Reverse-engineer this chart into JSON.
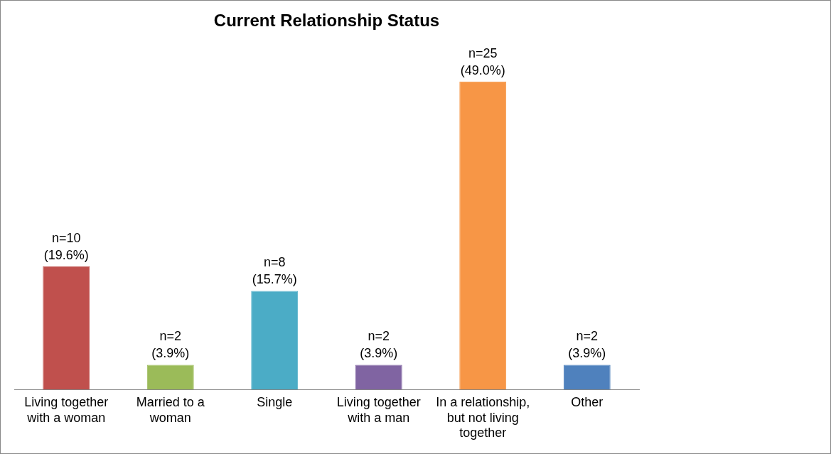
{
  "chart_data": {
    "type": "bar",
    "title": "Current Relationship Status",
    "categories": [
      "Living together with a woman",
      "Married to a woman",
      "Single",
      "Living together with a man",
      "In a relationship, but not living together",
      "Other"
    ],
    "values": [
      10,
      2,
      8,
      2,
      25,
      2
    ],
    "colors": [
      "#c0504d",
      "#9bbb59",
      "#4bacc6",
      "#8064a2",
      "#f79646",
      "#4f81bd"
    ],
    "value_labels": [
      "n=10\n(19.6%)",
      "n=2\n(3.9%)",
      "n=8\n(15.7%)",
      "n=2\n(3.9%)",
      "n=25\n(49.0%)",
      "n=2\n(3.9%)"
    ],
    "grid": false,
    "legend": false
  }
}
